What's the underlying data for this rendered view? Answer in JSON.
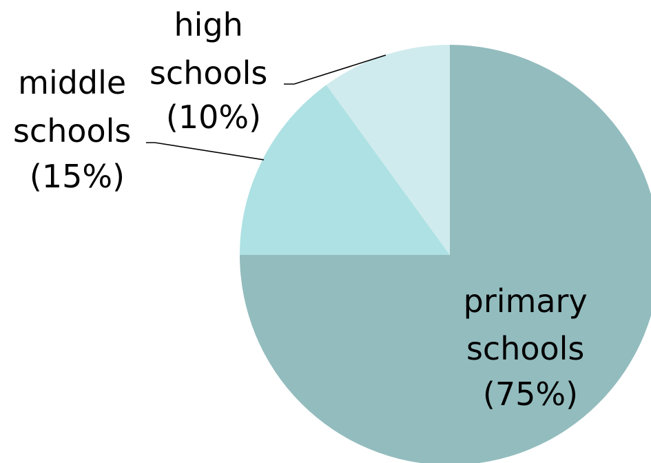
{
  "chart_data": {
    "type": "pie",
    "title": "",
    "start_angle_deg": 0,
    "direction": "clockwise",
    "slices": [
      {
        "label_lines": [
          "primary",
          "schools",
          "(75%)"
        ],
        "value": 75,
        "color": "#93BCBE"
      },
      {
        "label_lines": [
          "middle",
          "schools",
          "(15%)"
        ],
        "value": 15,
        "color": "#AEE1E3"
      },
      {
        "label_lines": [
          "high",
          "schools",
          "(10%)"
        ],
        "value": 10,
        "color": "#D0EBEE"
      }
    ]
  }
}
